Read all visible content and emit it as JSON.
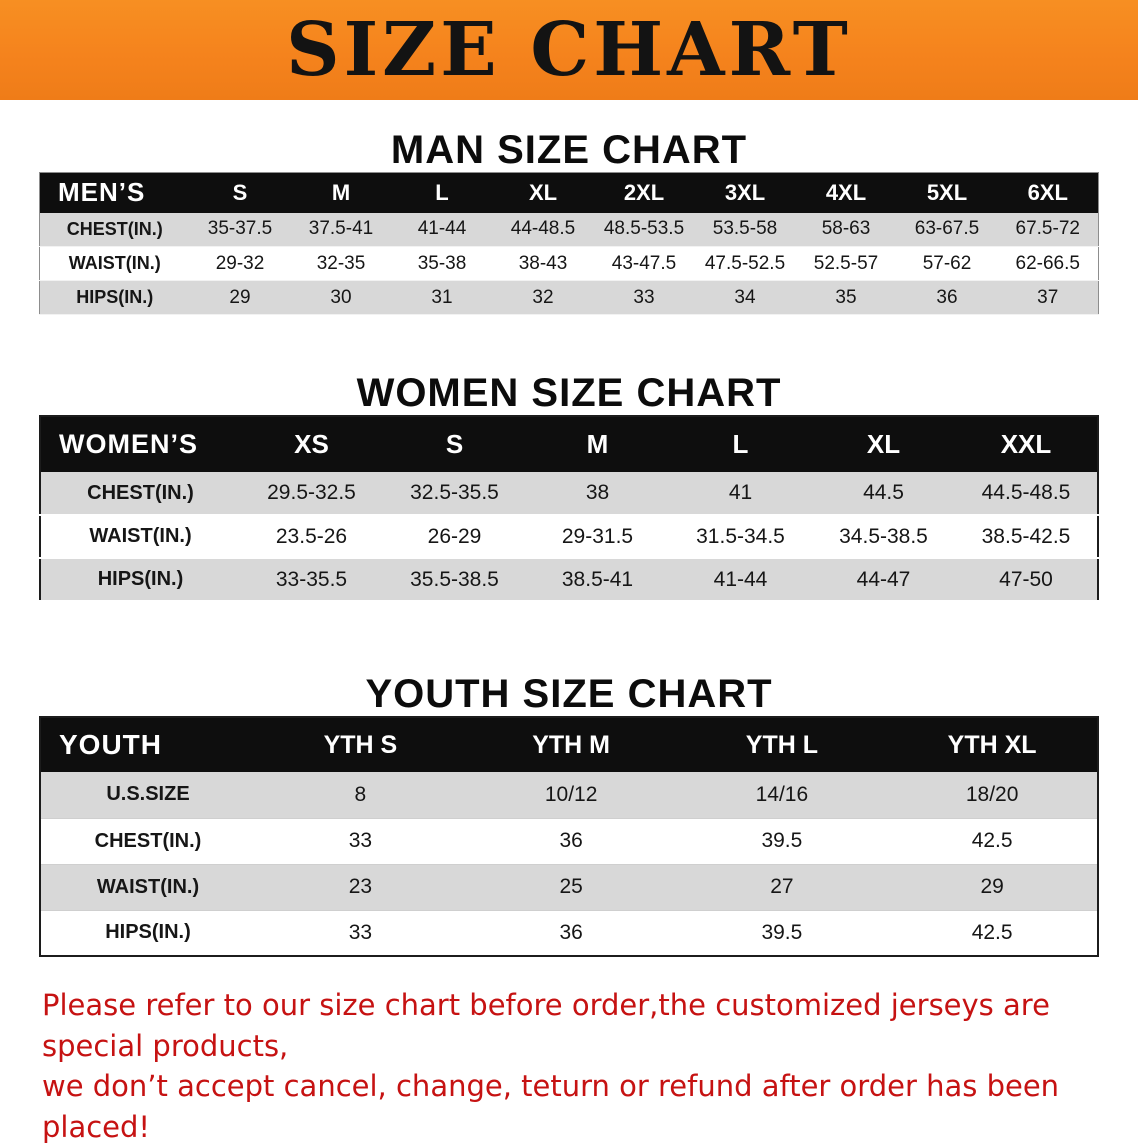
{
  "banner": {
    "title": "SIZE CHART"
  },
  "colors": {
    "banner_bg": "#f5831d",
    "table_header_bg": "#0e0e0e",
    "row_alt_bg": "#d8d8d8",
    "footer_text": "#c61212"
  },
  "sections": {
    "men": {
      "heading": "MAN SIZE CHART",
      "table": {
        "header": [
          "MEN’S",
          "S",
          "M",
          "L",
          "XL",
          "2XL",
          "3XL",
          "4XL",
          "5XL",
          "6XL"
        ],
        "rows": [
          [
            "CHEST(IN.)",
            "35-37.5",
            "37.5-41",
            "41-44",
            "44-48.5",
            "48.5-53.5",
            "53.5-58",
            "58-63",
            "63-67.5",
            "67.5-72"
          ],
          [
            "WAIST(IN.)",
            "29-32",
            "32-35",
            "35-38",
            "38-43",
            "43-47.5",
            "47.5-52.5",
            "52.5-57",
            "57-62",
            "62-66.5"
          ],
          [
            "HIPS(IN.)",
            "29",
            "30",
            "31",
            "32",
            "33",
            "34",
            "35",
            "36",
            "37"
          ]
        ]
      }
    },
    "women": {
      "heading": "WOMEN SIZE CHART",
      "table": {
        "header": [
          "WOMEN’S",
          "XS",
          "S",
          "M",
          "L",
          "XL",
          "XXL"
        ],
        "rows": [
          [
            "CHEST(IN.)",
            "29.5-32.5",
            "32.5-35.5",
            "38",
            "41",
            "44.5",
            "44.5-48.5"
          ],
          [
            "WAIST(IN.)",
            "23.5-26",
            "26-29",
            "29-31.5",
            "31.5-34.5",
            "34.5-38.5",
            "38.5-42.5"
          ],
          [
            "HIPS(IN.)",
            "33-35.5",
            "35.5-38.5",
            "38.5-41",
            "41-44",
            "44-47",
            "47-50"
          ]
        ]
      }
    },
    "youth": {
      "heading": "YOUTH SIZE CHART",
      "table": {
        "header": [
          "YOUTH",
          "YTH S",
          "YTH M",
          "YTH L",
          "YTH XL"
        ],
        "rows": [
          [
            "U.S.SIZE",
            "8",
            "10/12",
            "14/16",
            "18/20"
          ],
          [
            "CHEST(IN.)",
            "33",
            "36",
            "39.5",
            "42.5"
          ],
          [
            "WAIST(IN.)",
            "23",
            "25",
            "27",
            "29"
          ],
          [
            "HIPS(IN.)",
            "33",
            "36",
            "39.5",
            "42.5"
          ]
        ]
      }
    }
  },
  "footer": {
    "line1": "Please refer to our size chart before order,the customized jerseys are special products,",
    "line2": "we don’t accept cancel, change, teturn or refund after order has been placed!"
  }
}
